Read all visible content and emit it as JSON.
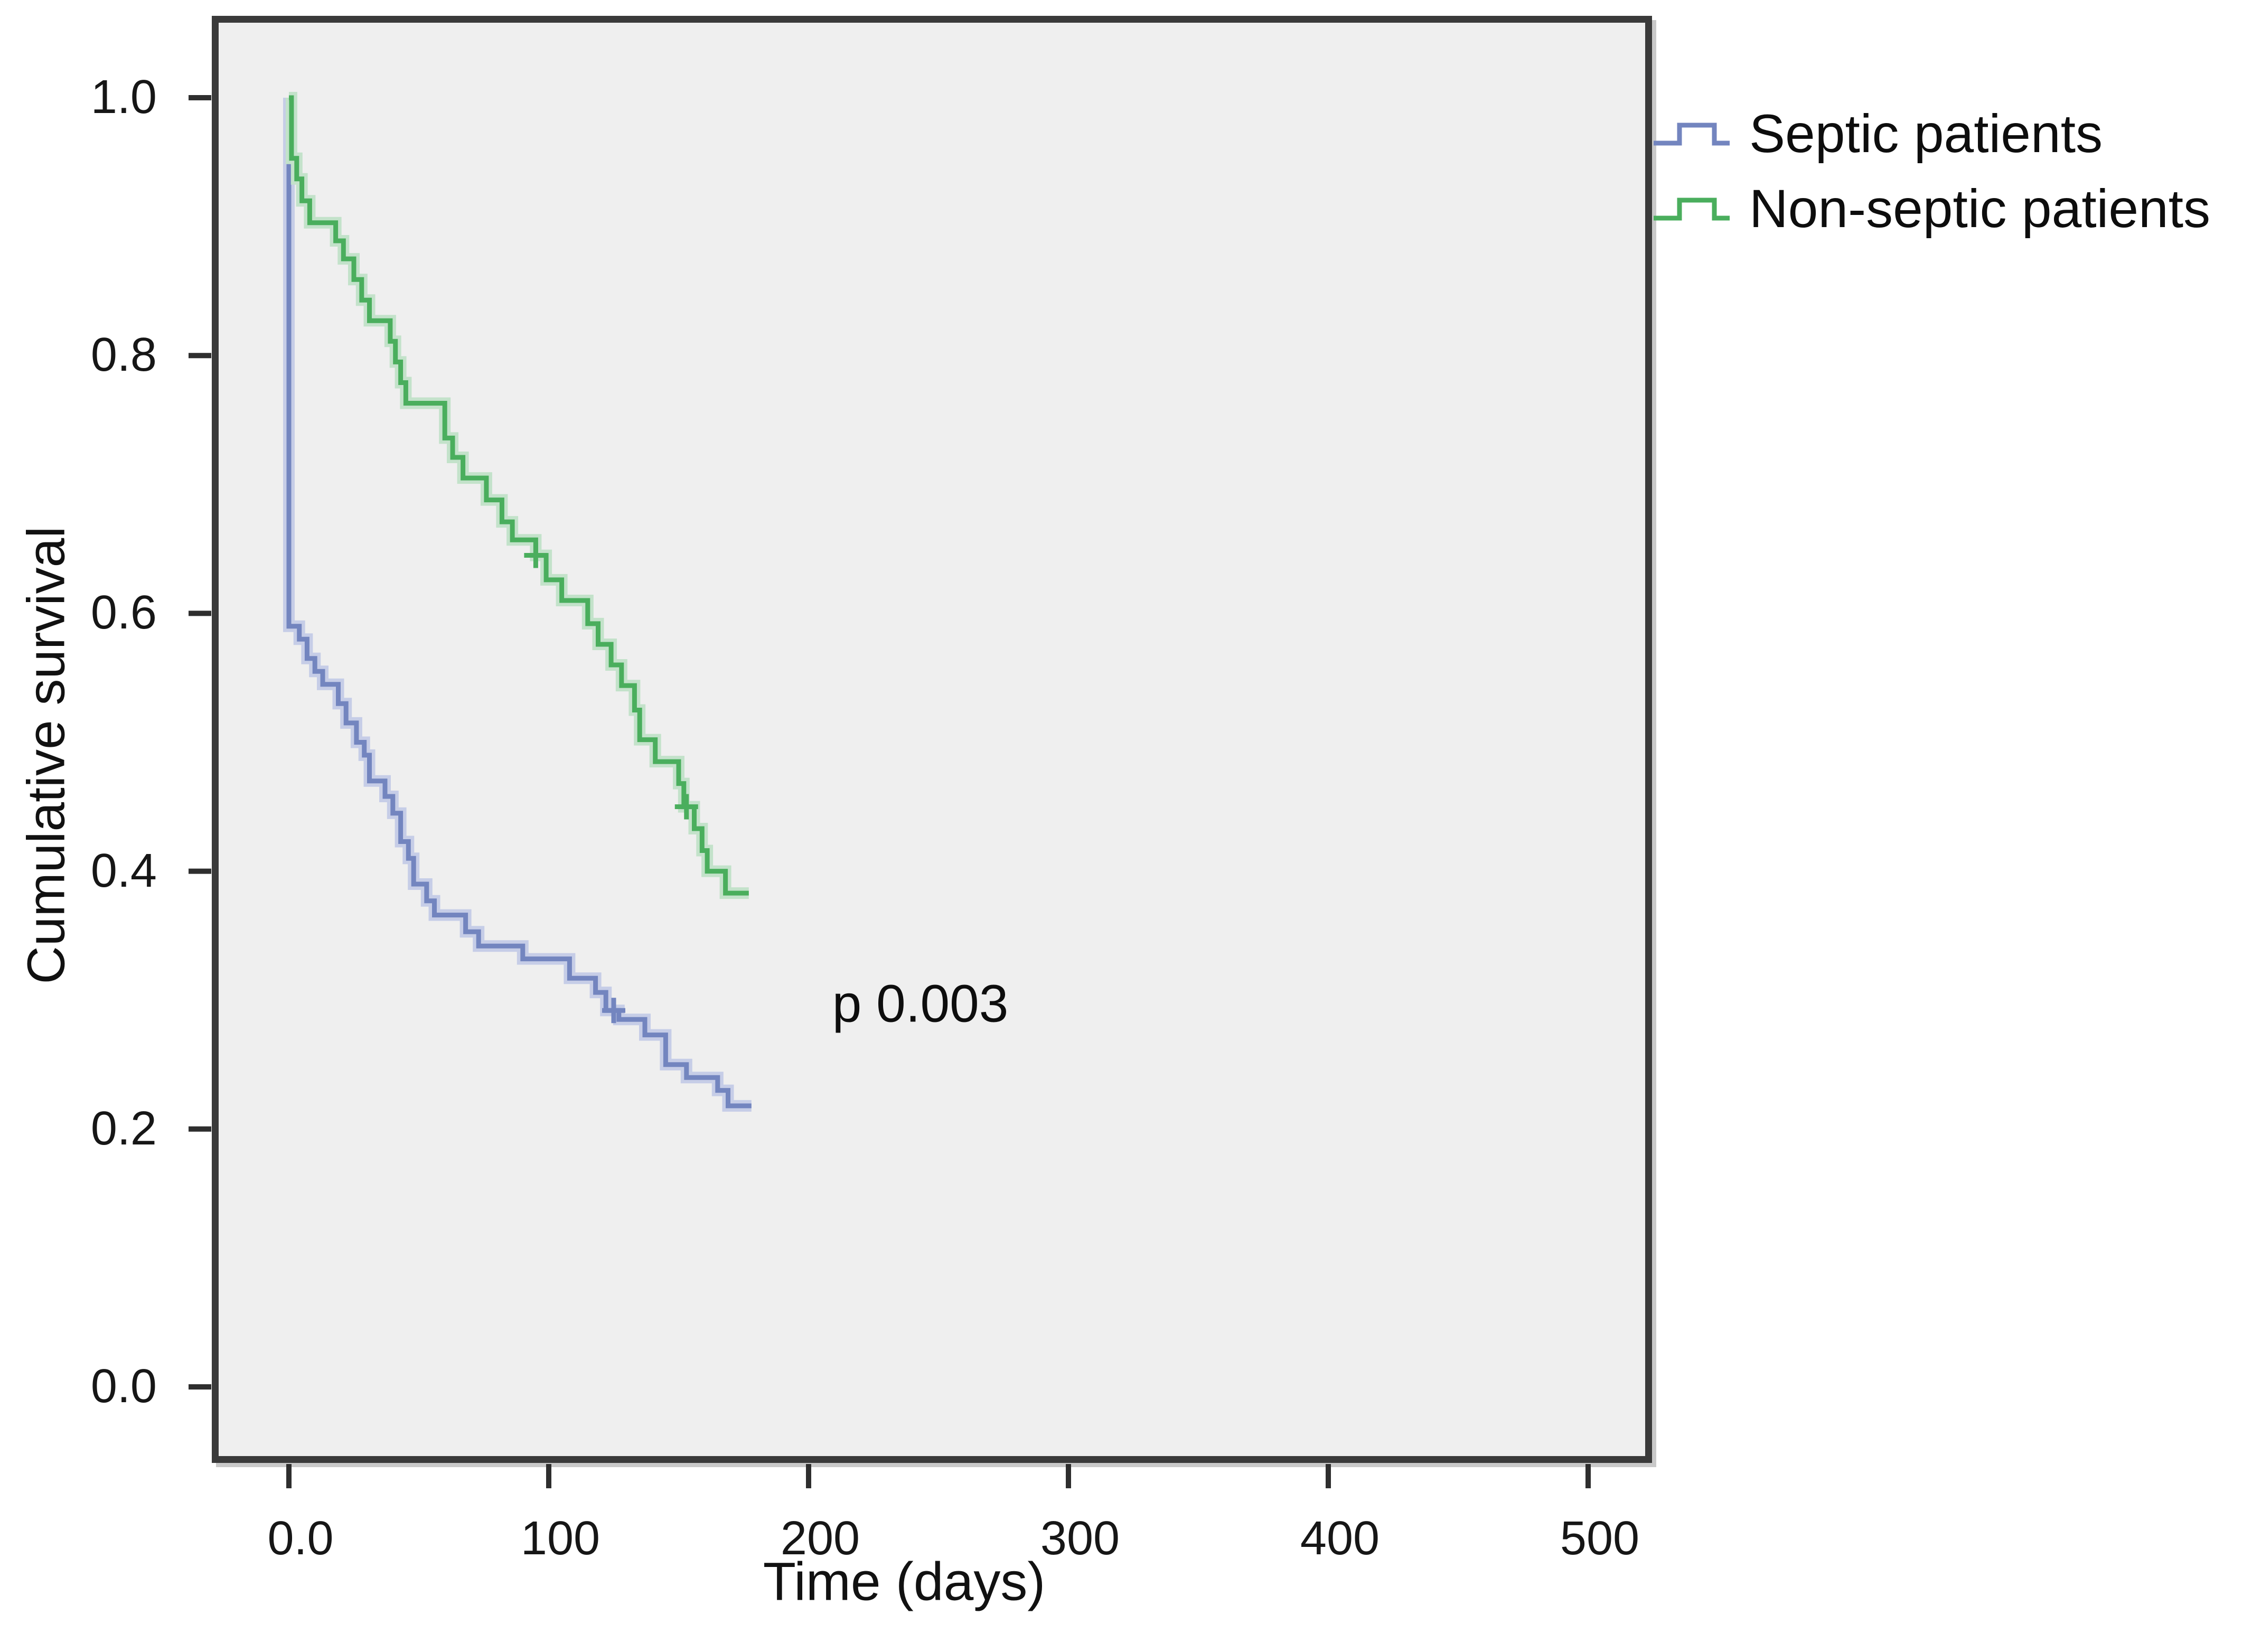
{
  "figure": {
    "background_color": "#ffffff",
    "plot_background_color": "#efefef",
    "frame_color": "#3a3a3a",
    "tick_color": "#2e2e2e",
    "text_color": "#111111"
  },
  "chart_data": {
    "type": "line",
    "subtype": "kaplan-meier-step",
    "title": "",
    "xlabel": "Time (days)",
    "ylabel": "Cumulative survival",
    "xlim": [
      -30,
      525
    ],
    "ylim": [
      -0.054,
      1.058
    ],
    "grid": false,
    "legend_position": "outside-top-right",
    "x_ticks": [
      {
        "value": 0,
        "label": "0.0"
      },
      {
        "value": 100,
        "label": "100"
      },
      {
        "value": 200,
        "label": "200"
      },
      {
        "value": 300,
        "label": "300"
      },
      {
        "value": 400,
        "label": "400"
      },
      {
        "value": 500,
        "label": "500"
      }
    ],
    "y_ticks": [
      {
        "value": 0.0,
        "label": "0.0"
      },
      {
        "value": 0.2,
        "label": "0.2"
      },
      {
        "value": 0.4,
        "label": "0.4"
      },
      {
        "value": 0.6,
        "label": "0.6"
      },
      {
        "value": 0.8,
        "label": "0.8"
      },
      {
        "value": 1.0,
        "label": "1.0"
      }
    ],
    "annotation": {
      "text": "p 0.003",
      "x_days": 243,
      "survival": 0.297
    },
    "legend": [
      {
        "label": "Septic patients",
        "color": "#7385bf"
      },
      {
        "label": "Non-septic patients",
        "color": "#4aae5d"
      }
    ],
    "series": [
      {
        "name": "Septic patients",
        "color": "#7385bf",
        "halo_color": "#c6cde7",
        "start": [
          0,
          1.0
        ],
        "steps": [
          [
            0,
            0.59
          ],
          [
            4,
            0.58
          ],
          [
            7,
            0.565
          ],
          [
            10,
            0.555
          ],
          [
            13,
            0.545
          ],
          [
            19,
            0.53
          ],
          [
            22,
            0.515
          ],
          [
            26,
            0.5
          ],
          [
            29,
            0.49
          ],
          [
            31,
            0.47
          ],
          [
            37,
            0.458
          ],
          [
            40,
            0.445
          ],
          [
            43,
            0.423
          ],
          [
            46,
            0.41
          ],
          [
            48,
            0.39
          ],
          [
            53,
            0.377
          ],
          [
            56,
            0.366
          ],
          [
            68,
            0.353
          ],
          [
            73,
            0.342
          ],
          [
            90,
            0.332
          ],
          [
            108,
            0.317
          ],
          [
            118,
            0.306
          ],
          [
            122,
            0.292
          ],
          [
            127,
            0.285
          ],
          [
            137,
            0.273
          ],
          [
            145,
            0.25
          ],
          [
            153,
            0.24
          ],
          [
            165,
            0.23
          ],
          [
            169,
            0.218
          ]
        ],
        "end_time": 178,
        "censored": [
          [
            125,
            0.292
          ]
        ]
      },
      {
        "name": "Non-septic patients",
        "color": "#4aae5d",
        "halo_color": "#c3e2ca",
        "start": [
          0,
          1.0
        ],
        "steps": [
          [
            1,
            0.953
          ],
          [
            3,
            0.937
          ],
          [
            5,
            0.92
          ],
          [
            8,
            0.903
          ],
          [
            18,
            0.889
          ],
          [
            21,
            0.875
          ],
          [
            25,
            0.859
          ],
          [
            28,
            0.843
          ],
          [
            31,
            0.827
          ],
          [
            39,
            0.811
          ],
          [
            41,
            0.795
          ],
          [
            43,
            0.779
          ],
          [
            45,
            0.763
          ],
          [
            60,
            0.736
          ],
          [
            63,
            0.721
          ],
          [
            67,
            0.705
          ],
          [
            76,
            0.688
          ],
          [
            82,
            0.671
          ],
          [
            86,
            0.657
          ],
          [
            95,
            0.645
          ],
          [
            99,
            0.626
          ],
          [
            105,
            0.61
          ],
          [
            115,
            0.592
          ],
          [
            119,
            0.576
          ],
          [
            124,
            0.56
          ],
          [
            128,
            0.544
          ],
          [
            133,
            0.525
          ],
          [
            135,
            0.502
          ],
          [
            141,
            0.485
          ],
          [
            150,
            0.468
          ],
          [
            152,
            0.45
          ],
          [
            156,
            0.433
          ],
          [
            159,
            0.416
          ],
          [
            161,
            0.4
          ],
          [
            168,
            0.383
          ]
        ],
        "end_time": 177,
        "censored": [
          [
            95,
            0.645
          ],
          [
            153,
            0.45
          ]
        ]
      }
    ]
  }
}
